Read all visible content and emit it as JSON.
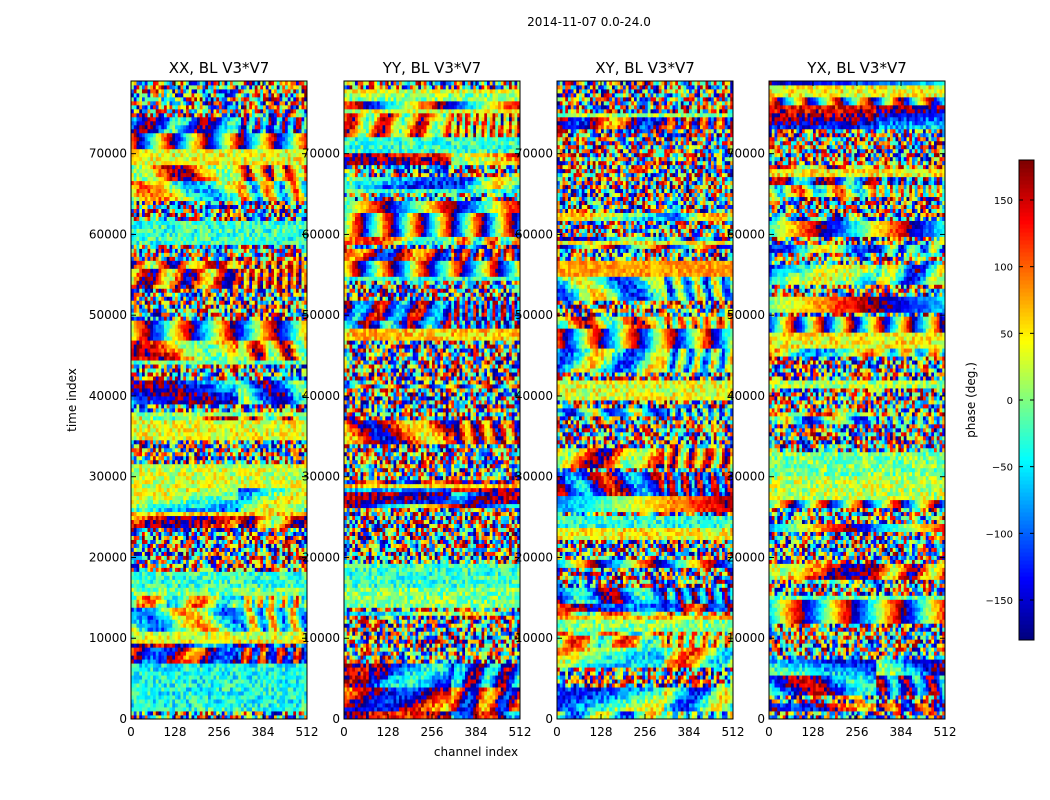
{
  "chart_data": {
    "type": "heatmap",
    "suptitle": "2014-11-07 0.0-24.0",
    "xlabel": "channel index",
    "ylabel": "time index",
    "x_range": [
      0,
      512
    ],
    "y_range": [
      0,
      79000
    ],
    "x_ticks": [
      0,
      128,
      256,
      384,
      512
    ],
    "y_ticks": [
      0,
      10000,
      20000,
      30000,
      40000,
      50000,
      60000,
      70000
    ],
    "panels": [
      {
        "title": "XX, BL V3*V7",
        "seed": 11
      },
      {
        "title": "YY, BL V3*V7",
        "seed": 23
      },
      {
        "title": "XY, BL V3*V7",
        "seed": 37
      },
      {
        "title": "YX, BL V3*V7",
        "seed": 53
      }
    ],
    "colorbar": {
      "label": "phase (deg.)",
      "range": [
        -180,
        180
      ],
      "ticks": [
        -150,
        -100,
        -50,
        0,
        50,
        100,
        150
      ],
      "colormap": "jet"
    }
  }
}
